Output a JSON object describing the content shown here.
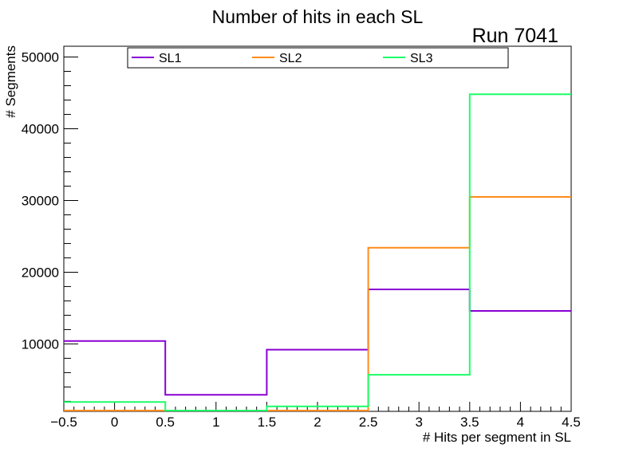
{
  "chart_data": {
    "type": "step-histogram",
    "title": "Number of hits in each SL",
    "annotation": "Run 7041",
    "xlabel": "# Hits per segment in SL",
    "ylabel": "# Segments",
    "xlim": [
      -0.5,
      4.5
    ],
    "ylim": [
      600,
      51500
    ],
    "bin_edges": [
      -0.5,
      0.5,
      1.5,
      2.5,
      3.5,
      4.5
    ],
    "x_ticks": [
      -0.5,
      0,
      0.5,
      1,
      1.5,
      2,
      2.5,
      3,
      3.5,
      4,
      4.5
    ],
    "x_tick_labels": [
      "−0.5",
      "0",
      "0.5",
      "1",
      "1.5",
      "2",
      "2.5",
      "3",
      "3.5",
      "4",
      "4.5"
    ],
    "y_ticks": [
      10000,
      20000,
      30000,
      40000,
      50000
    ],
    "y_tick_labels": [
      "10000",
      "20000",
      "30000",
      "40000",
      "50000"
    ],
    "legend_position": "top",
    "series": [
      {
        "name": "SL1",
        "color": "#8a00d4",
        "values": [
          10400,
          2900,
          9200,
          17600,
          14600
        ]
      },
      {
        "name": "SL2",
        "color": "#ff8c1a",
        "values": [
          500,
          450,
          450,
          23400,
          30500
        ]
      },
      {
        "name": "SL3",
        "color": "#1aff66",
        "values": [
          1900,
          500,
          1300,
          5700,
          44800
        ]
      }
    ]
  }
}
